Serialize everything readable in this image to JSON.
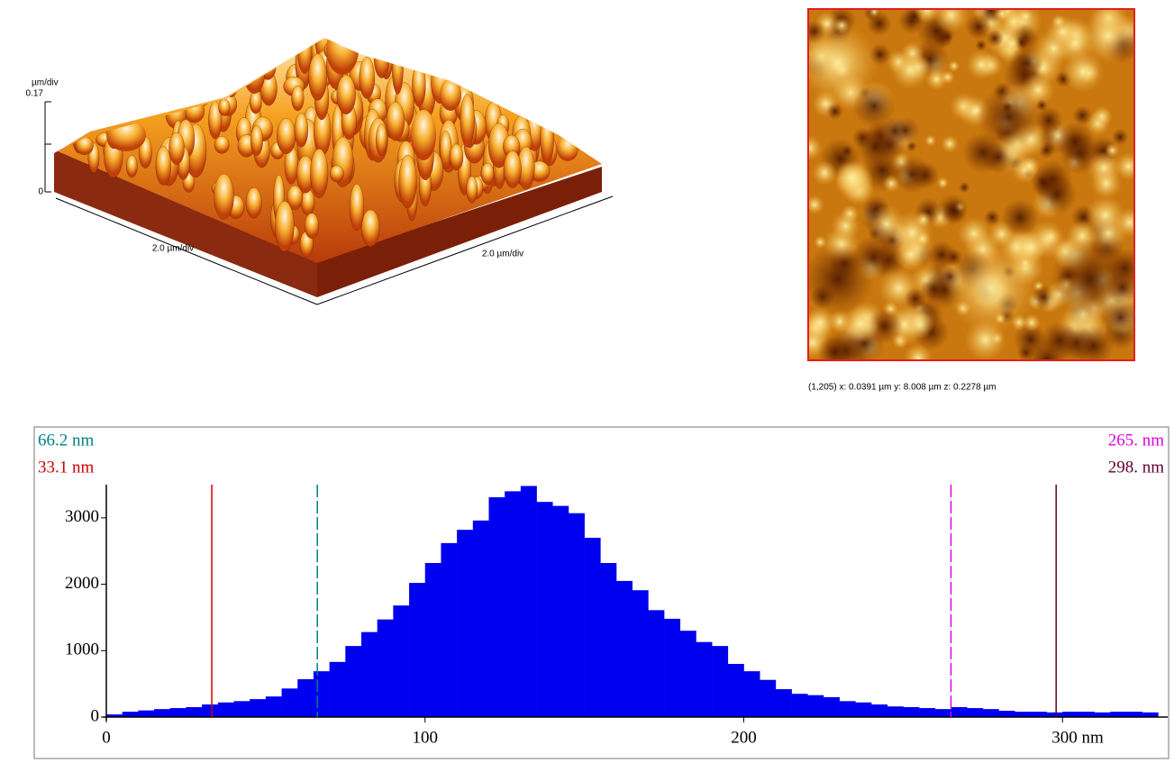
{
  "surface_3d": {
    "z_unit": "µm/div",
    "z_ticks": [
      0,
      0.17
    ],
    "x_scale": "2.0 µm/div",
    "y_scale": "2.0 µm/div"
  },
  "image_caption": "(1,205)  x: 0.0391 µm   y: 8.008 µm  z: 0.2278 µm",
  "chart_data": {
    "type": "histogram",
    "bins": [
      0,
      5,
      10,
      15,
      20,
      25,
      30,
      35,
      40,
      45,
      50,
      55,
      60,
      65,
      70,
      75,
      80,
      85,
      90,
      95,
      100,
      105,
      110,
      115,
      120,
      125,
      130,
      135,
      140,
      145,
      150,
      155,
      160,
      165,
      170,
      175,
      180,
      185,
      190,
      195,
      200,
      205,
      210,
      215,
      220,
      225,
      230,
      235,
      240,
      245,
      250,
      255,
      260,
      265,
      270,
      275,
      280,
      285,
      290,
      295,
      300,
      305,
      310,
      315,
      320,
      325,
      330
    ],
    "values": [
      40,
      80,
      100,
      120,
      135,
      150,
      190,
      220,
      240,
      270,
      310,
      430,
      570,
      690,
      830,
      1070,
      1280,
      1470,
      1680,
      2020,
      2320,
      2620,
      2820,
      2960,
      3310,
      3400,
      3480,
      3240,
      3180,
      3070,
      2700,
      2320,
      2050,
      1910,
      1610,
      1480,
      1300,
      1130,
      1070,
      800,
      690,
      560,
      420,
      350,
      330,
      300,
      240,
      220,
      190,
      160,
      150,
      135,
      120,
      150,
      135,
      120,
      95,
      80,
      80,
      70,
      80,
      80,
      70,
      80,
      80,
      70
    ],
    "color": "#0000f0",
    "xlim": [
      0,
      333
    ],
    "ylim": [
      0,
      3500
    ],
    "xticks": [
      0,
      100,
      200,
      {
        "value": 300,
        "label": "300 nm"
      }
    ],
    "yticks": [
      0,
      1000,
      2000,
      3000
    ],
    "markers": [
      {
        "value": 66.2,
        "label": "66.2 nm",
        "color": "#008080",
        "dashed": true
      },
      {
        "value": 33.1,
        "label": "33.1 nm",
        "color": "#d00000",
        "dashed": false
      },
      {
        "value": 265,
        "label": "265. nm",
        "color": "#e000e0",
        "dashed": true
      },
      {
        "value": 298,
        "label": "298. nm",
        "color": "#600030",
        "dashed": false
      }
    ]
  }
}
